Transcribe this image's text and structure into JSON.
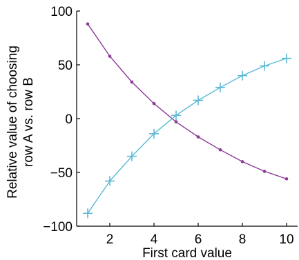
{
  "chart_data": {
    "type": "line",
    "title": "",
    "xlabel": "First card value",
    "ylabel_lines": [
      "Relative value of choosing",
      "row A vs. row B"
    ],
    "xlim": [
      0.5,
      10.5
    ],
    "ylim": [
      -100,
      100
    ],
    "xticks": [
      2,
      4,
      6,
      8,
      10
    ],
    "yticks": [
      100,
      50,
      0,
      -50,
      -100
    ],
    "ytick_labels": [
      "100",
      "50",
      "0",
      "−50",
      "−100"
    ],
    "grid": false,
    "legend": "none",
    "x": [
      1,
      2,
      3,
      4,
      5,
      6,
      7,
      8,
      9,
      10
    ],
    "series": [
      {
        "color": "#8B3A96",
        "marker": "dot",
        "values": [
          88,
          58,
          34,
          14,
          -3,
          -17,
          -29,
          -40,
          -49,
          -56
        ]
      },
      {
        "color": "#5BB8D5",
        "marker": "plus",
        "values": [
          -88,
          -58,
          -35,
          -14,
          3,
          17,
          29,
          40,
          49,
          56
        ]
      }
    ]
  }
}
